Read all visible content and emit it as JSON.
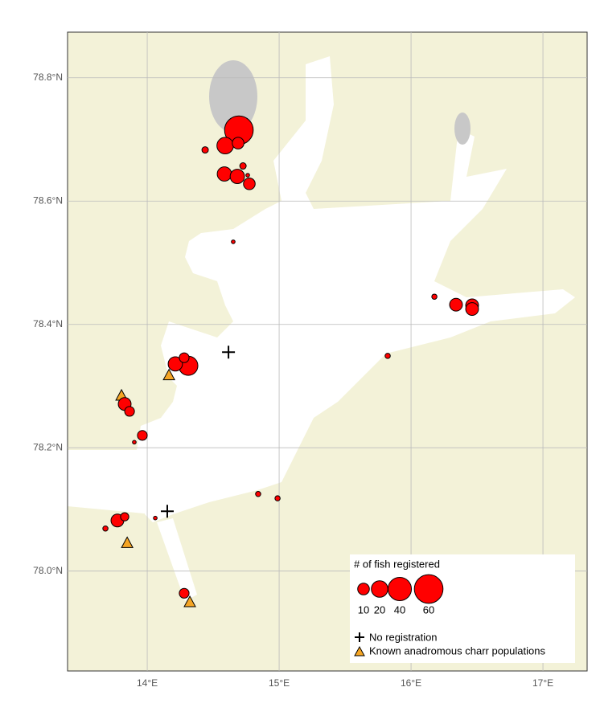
{
  "map": {
    "xlim": [
      13.396,
      17.335
    ],
    "ylim": [
      77.838,
      78.874
    ],
    "xticks": [
      {
        "value": 14,
        "label": "14°E"
      },
      {
        "value": 15,
        "label": "15°E"
      },
      {
        "value": 16,
        "label": "16°E"
      },
      {
        "value": 17,
        "label": "17°E"
      }
    ],
    "yticks": [
      {
        "value": 78.0,
        "label": "78.0°N"
      },
      {
        "value": 78.2,
        "label": "78.2°N"
      },
      {
        "value": 78.4,
        "label": "78.4°N"
      },
      {
        "value": 78.6,
        "label": "78.6°N"
      },
      {
        "value": 78.8,
        "label": "78.8°N"
      }
    ],
    "fish_color": "#ff0000",
    "charr_color": "#f5a524",
    "sites": [
      {
        "lon": 14.695,
        "lat": 78.715,
        "fish": 60
      },
      {
        "lon": 14.591,
        "lat": 78.69,
        "fish": 20
      },
      {
        "lon": 14.689,
        "lat": 78.694,
        "fish": 10
      },
      {
        "lon": 14.439,
        "lat": 78.683,
        "fish": 3
      },
      {
        "lon": 14.585,
        "lat": 78.644,
        "fish": 15
      },
      {
        "lon": 14.683,
        "lat": 78.64,
        "fish": 15
      },
      {
        "lon": 14.726,
        "lat": 78.657,
        "fish": 3
      },
      {
        "lon": 14.774,
        "lat": 78.628,
        "fish": 10
      },
      {
        "lon": 14.762,
        "lat": 78.642,
        "fish": 1
      },
      {
        "lon": 14.652,
        "lat": 78.534,
        "fish": 1
      },
      {
        "lon": 16.341,
        "lat": 78.432,
        "fish": 12
      },
      {
        "lon": 16.463,
        "lat": 78.431,
        "fish": 12
      },
      {
        "lon": 16.463,
        "lat": 78.425,
        "fish": 12
      },
      {
        "lon": 16.177,
        "lat": 78.445,
        "fish": 2
      },
      {
        "lon": 14.311,
        "lat": 78.333,
        "fish": 27
      },
      {
        "lon": 14.213,
        "lat": 78.336,
        "fish": 15
      },
      {
        "lon": 14.28,
        "lat": 78.346,
        "fish": 7
      },
      {
        "lon": 15.823,
        "lat": 78.349,
        "fish": 2
      },
      {
        "lon": 13.829,
        "lat": 78.271,
        "fish": 12
      },
      {
        "lon": 13.866,
        "lat": 78.259,
        "fish": 7
      },
      {
        "lon": 13.963,
        "lat": 78.22,
        "fish": 7
      },
      {
        "lon": 13.902,
        "lat": 78.209,
        "fish": 1
      },
      {
        "lon": 14.841,
        "lat": 78.125,
        "fish": 2
      },
      {
        "lon": 14.988,
        "lat": 78.118,
        "fish": 2
      },
      {
        "lon": 13.774,
        "lat": 78.082,
        "fish": 12
      },
      {
        "lon": 13.829,
        "lat": 78.088,
        "fish": 5
      },
      {
        "lon": 13.683,
        "lat": 78.069,
        "fish": 2
      },
      {
        "lon": 14.061,
        "lat": 78.086,
        "fish": 1
      },
      {
        "lon": 14.28,
        "lat": 77.964,
        "fish": 7
      }
    ],
    "no_registration": [
      {
        "lon": 14.616,
        "lat": 78.355
      },
      {
        "lon": 14.152,
        "lat": 78.097
      }
    ],
    "charr": [
      {
        "lon": 13.805,
        "lat": 78.285
      },
      {
        "lon": 14.165,
        "lat": 78.318
      },
      {
        "lon": 13.848,
        "lat": 78.046
      },
      {
        "lon": 14.323,
        "lat": 77.95
      }
    ],
    "legend": {
      "title": "# of fish registered",
      "sizes": [
        10,
        20,
        40,
        60
      ],
      "no_registration": "No registration",
      "charr": "Known anadromous charr populations"
    }
  }
}
